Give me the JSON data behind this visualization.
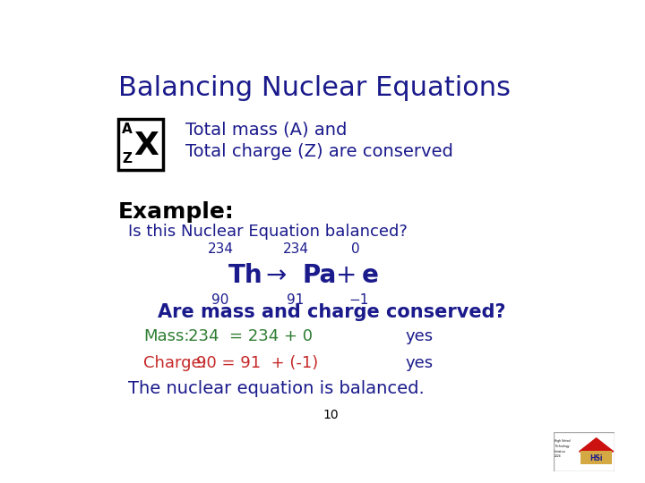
{
  "title": "Balancing Nuclear Equations",
  "title_color": "#1a1a8c",
  "title_fontsize": 22,
  "bg_color": "#ffffff",
  "box_label_A": "A",
  "box_label_Z": "Z",
  "box_label_X": "X",
  "conserved_line1": "Total mass (A) and",
  "conserved_line2": "Total charge (Z) are conserved",
  "conserved_color": "#1a1a8c",
  "conserved_fontsize": 14,
  "example_label": "Example:",
  "example_color": "#000000",
  "example_fontsize": 18,
  "question_text": "Is this Nuclear Equation balanced?",
  "question_fontsize": 13,
  "question_color": "#1a1a8c",
  "are_mass_text": "Are mass and charge conserved?",
  "are_mass_color": "#1a1a8c",
  "are_mass_fontsize": 15,
  "mass_label": "Mass:",
  "mass_equation": "234  = 234 + 0",
  "mass_yes": "yes",
  "mass_color": "#2e7d32",
  "charge_label": "Charge:",
  "charge_equation": "90 = 91  + (-1)",
  "charge_yes": "yes",
  "charge_color": "#c62828",
  "yes_color": "#1a1a8c",
  "conclusion": "The nuclear equation is balanced.",
  "conclusion_color": "#1a1a8c",
  "conclusion_fontsize": 14,
  "page_num": "10",
  "eq_color": "#1a1a8c",
  "arrow_color": "#1a1a8c"
}
